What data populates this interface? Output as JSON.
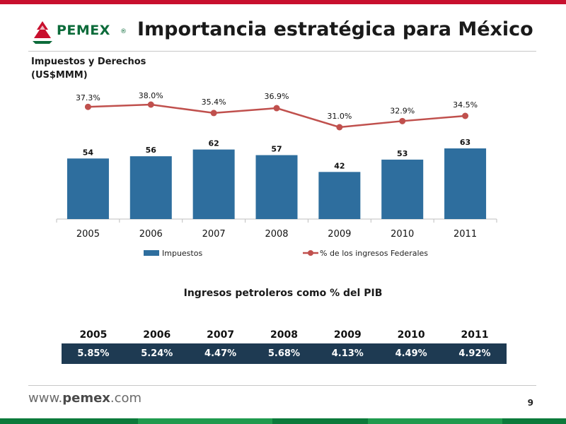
{
  "header": {
    "logo_text": "PEMEX",
    "logo_reg": "®",
    "title": "Importancia estratégica para México"
  },
  "colors": {
    "accent_red": "#c8102e",
    "brand_green": "#0c6b3a",
    "bar_blue": "#2e6e9e",
    "line_red": "#c0504d",
    "table_bg": "#1e3a52"
  },
  "chart_data": {
    "type": "bar",
    "title_line1": "Impuestos y Derechos",
    "title_line2": "(US$MMM)",
    "categories": [
      "2005",
      "2006",
      "2007",
      "2008",
      "2009",
      "2010",
      "2011"
    ],
    "series": [
      {
        "name": "Impuestos",
        "type": "bar",
        "values": [
          54,
          56,
          62,
          57,
          42,
          53,
          63
        ],
        "labels": [
          "54",
          "56",
          "62",
          "57",
          "42",
          "53",
          "63"
        ]
      },
      {
        "name": "% de los ingresos Federales",
        "type": "line",
        "values": [
          37.3,
          38.0,
          35.4,
          36.9,
          31.0,
          32.9,
          34.5
        ],
        "labels": [
          "37.3%",
          "38.0%",
          "35.4%",
          "36.9%",
          "31.0%",
          "32.9%",
          "34.5%"
        ]
      }
    ],
    "grid": false,
    "legend_position": "bottom"
  },
  "table": {
    "title": "Ingresos petroleros como % del PIB",
    "years": [
      "2005",
      "2006",
      "2007",
      "2008",
      "2009",
      "2010",
      "2011"
    ],
    "values": [
      "5.85%",
      "5.24%",
      "4.47%",
      "5.68%",
      "4.13%",
      "4.49%",
      "4.92%"
    ]
  },
  "footer": {
    "url_prefix": "www.",
    "url_brand": "pemex",
    "url_suffix": ".com",
    "page_number": "9"
  }
}
